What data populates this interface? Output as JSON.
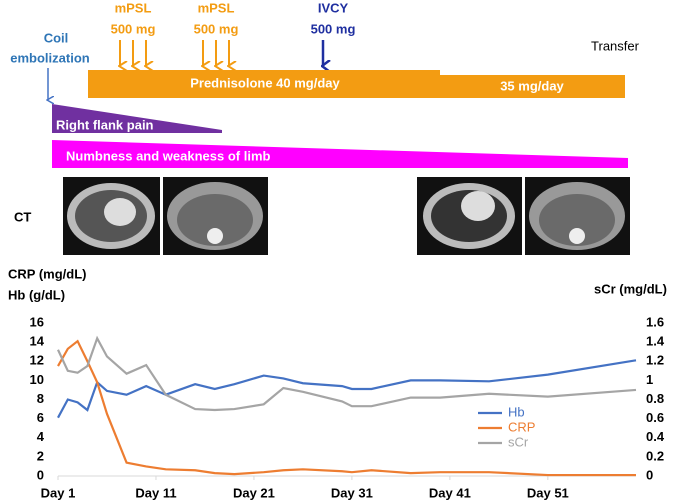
{
  "timeline": {
    "coil_label": [
      "Coil",
      "embolization"
    ],
    "mpsl_1": [
      "mPSL",
      "500 mg"
    ],
    "mpsl_2": [
      "mPSL",
      "500 mg"
    ],
    "ivcy": [
      "IVCY",
      "500 mg"
    ],
    "transfer": "Transfer",
    "prednisolone_1": "Prednisolone 40 mg/day",
    "prednisolone_2": "35 mg/day",
    "symptom_1": "Right flank pain",
    "symptom_2": "Numbness and weakness of limb",
    "ct_label": "CT"
  },
  "chart_data": {
    "type": "line",
    "y_title": [
      "CRP (mg/dL)",
      "Hb (g/dL)"
    ],
    "y2_title": "sCr (mg/dL)",
    "x": [
      1,
      2,
      3,
      4,
      5,
      6,
      8,
      10,
      12,
      15,
      17,
      19,
      22,
      24,
      26,
      30,
      31,
      33,
      37,
      40,
      45,
      51,
      60
    ],
    "xlim": [
      1,
      60
    ],
    "xticks": [
      {
        "value": 1,
        "label": "Day 1"
      },
      {
        "value": 11,
        "label": "Day 11"
      },
      {
        "value": 21,
        "label": "Day 21"
      },
      {
        "value": 31,
        "label": "Day 31"
      },
      {
        "value": 41,
        "label": "Day 41"
      },
      {
        "value": 51,
        "label": "Day 51"
      }
    ],
    "ylim": [
      0,
      16
    ],
    "yticks": [
      0,
      2,
      4,
      6,
      8,
      10,
      12,
      14,
      16
    ],
    "y2lim": [
      0,
      1.6
    ],
    "y2ticks": [
      0,
      0.2,
      0.4,
      0.6,
      0.8,
      1,
      1.2,
      1.4,
      1.6
    ],
    "grid": false,
    "legend": "lower right",
    "series": [
      {
        "name": "Hb",
        "color": "#4472c4",
        "values": [
          6.1,
          8.0,
          7.7,
          6.9,
          9.8,
          8.9,
          8.5,
          9.4,
          8.5,
          9.6,
          9.1,
          9.6,
          10.5,
          10.2,
          9.7,
          9.4,
          9.1,
          9.1,
          10.0,
          10.0,
          9.9,
          10.6,
          12.1
        ]
      },
      {
        "name": "CRP",
        "color": "#ed7d31",
        "values": [
          11.5,
          13.3,
          14.1,
          12.0,
          9.8,
          6.5,
          1.4,
          1.0,
          0.7,
          0.6,
          0.3,
          0.2,
          0.4,
          0.6,
          0.7,
          0.5,
          0.4,
          0.6,
          0.3,
          0.4,
          0.4,
          0.1,
          0.1
        ]
      },
      {
        "name": "sCr",
        "color": "#a5a5a5",
        "axis": "y2",
        "values": [
          1.32,
          1.1,
          1.08,
          1.15,
          1.44,
          1.25,
          1.07,
          1.16,
          0.85,
          0.7,
          0.69,
          0.7,
          0.75,
          0.92,
          0.88,
          0.78,
          0.73,
          0.73,
          0.82,
          0.82,
          0.86,
          0.83,
          0.9
        ]
      }
    ]
  }
}
